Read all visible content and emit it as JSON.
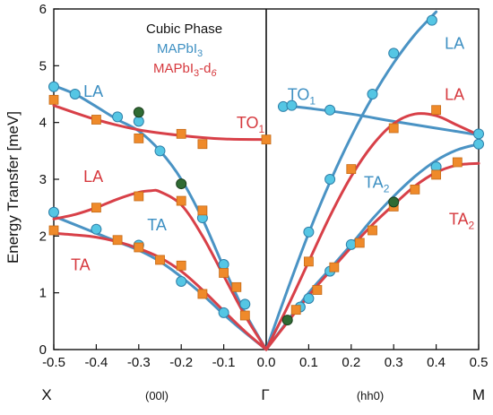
{
  "chart_data": {
    "type": "scatter",
    "ylabel": "Energy Transfer [meV]",
    "ylim": [
      0,
      6
    ],
    "yticks": [
      "0",
      "1",
      "2",
      "3",
      "4",
      "5",
      "6"
    ],
    "xlim": [
      -0.5,
      0.5
    ],
    "xticks": [
      "-0.5",
      "-0.4",
      "-0.3",
      "-0.2",
      "-0.1",
      "0.0",
      "0.1",
      "0.2",
      "0.3",
      "0.4",
      "0.5"
    ],
    "xtick_values": [
      -0.5,
      -0.4,
      -0.3,
      -0.2,
      -0.1,
      0.0,
      0.1,
      0.2,
      0.3,
      0.4,
      0.5
    ],
    "zone_labels": {
      "left_point": "X",
      "left_direction": "(00l)",
      "center_point": "Γ",
      "right_direction": "(hh0)",
      "right_point": "M"
    },
    "legend": {
      "title": "Cubic Phase",
      "entries": [
        {
          "text": "MAPbI",
          "sub": "3",
          "suffix": "",
          "color": "#3d8fc2"
        },
        {
          "text": "MAPbI",
          "sub": "3",
          "suffix": "-d",
          "suffix_sub": "6",
          "color": "#d6393e"
        }
      ]
    },
    "colors": {
      "blue_line": "#4a93c4",
      "blue_marker": "#55c6e4",
      "red_line": "#d84048",
      "orange_marker": "#ef8a2a",
      "dark_marker": "#2f6b33"
    },
    "branch_labels": [
      {
        "text": "LA",
        "sub": "",
        "color": "#3d8fc2",
        "x": -0.43,
        "y": 4.45
      },
      {
        "text": "TO",
        "sub": "1",
        "color": "#d6393e",
        "x": -0.07,
        "y": 3.9
      },
      {
        "text": "LA",
        "sub": "",
        "color": "#d6393e",
        "x": -0.43,
        "y": 2.95
      },
      {
        "text": "TA",
        "sub": "",
        "color": "#3d8fc2",
        "x": -0.28,
        "y": 2.1
      },
      {
        "text": "TA",
        "sub": "",
        "color": "#d6393e",
        "x": -0.46,
        "y": 1.4
      },
      {
        "text": "TO",
        "sub": "1",
        "color": "#3d8fc2",
        "x": 0.05,
        "y": 4.4
      },
      {
        "text": "LA",
        "sub": "",
        "color": "#3d8fc2",
        "x": 0.42,
        "y": 5.3
      },
      {
        "text": "LA",
        "sub": "",
        "color": "#d6393e",
        "x": 0.42,
        "y": 4.4
      },
      {
        "text": "TA",
        "sub": "2",
        "color": "#3d8fc2",
        "x": 0.23,
        "y": 2.85
      },
      {
        "text": "TA",
        "sub": "2",
        "color": "#d6393e",
        "x": 0.43,
        "y": 2.2
      }
    ],
    "series": [
      {
        "group": "MAPbI3",
        "curves": [
          {
            "branch": "LA (00l)",
            "x": [
              -0.5,
              -0.45,
              -0.4,
              -0.35,
              -0.3,
              -0.25,
              -0.2,
              -0.15,
              -0.1,
              -0.05,
              0.0
            ],
            "y": [
              4.65,
              4.5,
              4.28,
              4.05,
              3.85,
              3.5,
              3.0,
              2.3,
              1.45,
              0.65,
              0.0
            ]
          },
          {
            "branch": "TA (00l)",
            "x": [
              -0.5,
              -0.45,
              -0.4,
              -0.35,
              -0.3,
              -0.25,
              -0.2,
              -0.15,
              -0.1,
              -0.05,
              0.0
            ],
            "y": [
              2.35,
              2.2,
              2.05,
              1.9,
              1.75,
              1.55,
              1.28,
              0.97,
              0.62,
              0.3,
              0.0
            ]
          },
          {
            "branch": "LA (hh0)",
            "x": [
              0.0,
              0.05,
              0.1,
              0.15,
              0.2,
              0.25,
              0.3,
              0.35,
              0.4
            ],
            "y": [
              0.0,
              1.05,
              2.05,
              2.95,
              3.75,
              4.45,
              5.05,
              5.55,
              5.95
            ]
          },
          {
            "branch": "TO1 (hh0)",
            "x": [
              0.04,
              0.1,
              0.2,
              0.3,
              0.4,
              0.5
            ],
            "y": [
              4.3,
              4.25,
              4.15,
              4.02,
              3.9,
              3.78
            ]
          },
          {
            "branch": "TA2 (hh0)",
            "x": [
              0.0,
              0.05,
              0.1,
              0.15,
              0.2,
              0.25,
              0.3,
              0.35,
              0.4,
              0.45,
              0.5
            ],
            "y": [
              0.0,
              0.5,
              1.0,
              1.42,
              1.85,
              2.3,
              2.7,
              3.05,
              3.33,
              3.52,
              3.62
            ]
          }
        ],
        "points": [
          {
            "x": -0.5,
            "y": 4.63
          },
          {
            "x": -0.45,
            "y": 4.5
          },
          {
            "x": -0.35,
            "y": 4.1
          },
          {
            "x": -0.3,
            "y": 4.02
          },
          {
            "x": -0.25,
            "y": 3.5
          },
          {
            "x": -0.15,
            "y": 2.32
          },
          {
            "x": -0.1,
            "y": 1.5
          },
          {
            "x": -0.05,
            "y": 0.8
          },
          {
            "x": -0.5,
            "y": 2.42
          },
          {
            "x": -0.4,
            "y": 2.12
          },
          {
            "x": -0.3,
            "y": 1.84
          },
          {
            "x": -0.2,
            "y": 1.2
          },
          {
            "x": -0.1,
            "y": 0.65
          },
          {
            "x": 0.04,
            "y": 4.28
          },
          {
            "x": 0.06,
            "y": 4.3
          },
          {
            "x": 0.15,
            "y": 4.22
          },
          {
            "x": 0.1,
            "y": 2.07
          },
          {
            "x": 0.15,
            "y": 3.0
          },
          {
            "x": 0.25,
            "y": 4.5
          },
          {
            "x": 0.3,
            "y": 5.22
          },
          {
            "x": 0.39,
            "y": 5.8
          },
          {
            "x": 0.08,
            "y": 0.75
          },
          {
            "x": 0.1,
            "y": 0.9
          },
          {
            "x": 0.15,
            "y": 1.38
          },
          {
            "x": 0.2,
            "y": 1.85
          },
          {
            "x": 0.4,
            "y": 3.22
          },
          {
            "x": 0.5,
            "y": 3.62
          },
          {
            "x": 0.5,
            "y": 3.8
          }
        ]
      },
      {
        "group": "MAPbI3-d6",
        "curves": [
          {
            "branch": "TO1 (00l)",
            "x": [
              -0.5,
              -0.4,
              -0.3,
              -0.2,
              -0.1,
              0.0
            ],
            "y": [
              4.3,
              4.05,
              3.87,
              3.77,
              3.71,
              3.7
            ]
          },
          {
            "branch": "LA (00l)",
            "x": [
              -0.5,
              -0.45,
              -0.4,
              -0.35,
              -0.3,
              -0.27,
              -0.25,
              -0.2,
              -0.15,
              -0.1,
              -0.05,
              0.0
            ],
            "y": [
              2.3,
              2.38,
              2.5,
              2.65,
              2.77,
              2.8,
              2.78,
              2.55,
              2.0,
              1.3,
              0.6,
              0.0
            ]
          },
          {
            "branch": "TA (00l)",
            "x": [
              -0.5,
              -0.45,
              -0.4,
              -0.35,
              -0.3,
              -0.25,
              -0.2,
              -0.15,
              -0.1,
              -0.05,
              0.0
            ],
            "y": [
              2.05,
              2.02,
              1.98,
              1.9,
              1.78,
              1.62,
              1.38,
              1.05,
              0.68,
              0.32,
              0.0
            ]
          },
          {
            "branch": "LA (hh0)",
            "x": [
              0.0,
              0.05,
              0.1,
              0.15,
              0.2,
              0.25,
              0.3,
              0.35,
              0.4,
              0.45,
              0.5
            ],
            "y": [
              0.0,
              0.75,
              1.55,
              2.35,
              3.05,
              3.6,
              3.98,
              4.15,
              4.12,
              3.95,
              3.78
            ]
          },
          {
            "branch": "TA2 (hh0)",
            "x": [
              0.0,
              0.05,
              0.1,
              0.15,
              0.2,
              0.25,
              0.3,
              0.35,
              0.4,
              0.45,
              0.5
            ],
            "y": [
              0.0,
              0.48,
              0.95,
              1.38,
              1.8,
              2.2,
              2.55,
              2.88,
              3.12,
              3.25,
              3.28
            ]
          }
        ],
        "points": [
          {
            "x": -0.5,
            "y": 4.4
          },
          {
            "x": -0.4,
            "y": 4.05
          },
          {
            "x": -0.3,
            "y": 3.72
          },
          {
            "x": -0.2,
            "y": 3.8
          },
          {
            "x": -0.15,
            "y": 3.62
          },
          {
            "x": 0.0,
            "y": 3.7
          },
          {
            "x": -0.4,
            "y": 2.5
          },
          {
            "x": -0.3,
            "y": 2.7
          },
          {
            "x": -0.2,
            "y": 2.62
          },
          {
            "x": -0.15,
            "y": 2.45
          },
          {
            "x": -0.1,
            "y": 1.35
          },
          {
            "x": -0.07,
            "y": 1.1
          },
          {
            "x": -0.5,
            "y": 2.1
          },
          {
            "x": -0.35,
            "y": 1.93
          },
          {
            "x": -0.3,
            "y": 1.8
          },
          {
            "x": -0.25,
            "y": 1.58
          },
          {
            "x": -0.2,
            "y": 1.48
          },
          {
            "x": -0.15,
            "y": 0.98
          },
          {
            "x": -0.05,
            "y": 0.6
          },
          {
            "x": 0.1,
            "y": 1.55
          },
          {
            "x": 0.2,
            "y": 3.18
          },
          {
            "x": 0.3,
            "y": 3.9
          },
          {
            "x": 0.4,
            "y": 4.22
          },
          {
            "x": 0.07,
            "y": 0.7
          },
          {
            "x": 0.12,
            "y": 1.05
          },
          {
            "x": 0.16,
            "y": 1.45
          },
          {
            "x": 0.22,
            "y": 1.88
          },
          {
            "x": 0.25,
            "y": 2.1
          },
          {
            "x": 0.3,
            "y": 2.52
          },
          {
            "x": 0.35,
            "y": 2.82
          },
          {
            "x": 0.4,
            "y": 3.08
          },
          {
            "x": 0.45,
            "y": 3.3
          }
        ]
      },
      {
        "group": "dark",
        "points": [
          {
            "x": -0.3,
            "y": 4.18
          },
          {
            "x": -0.2,
            "y": 2.92
          },
          {
            "x": 0.05,
            "y": 0.52
          },
          {
            "x": 0.3,
            "y": 2.6
          }
        ]
      }
    ]
  }
}
